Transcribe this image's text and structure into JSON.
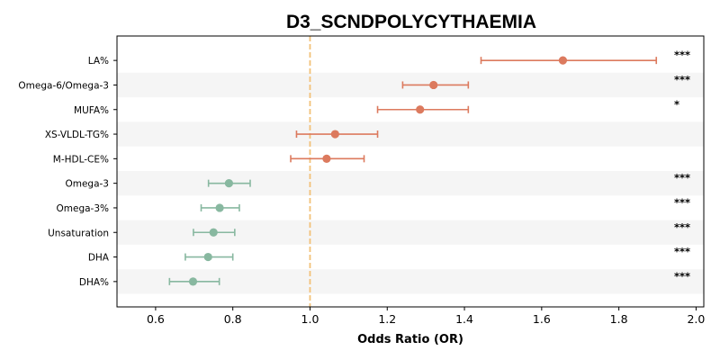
{
  "chart_data": {
    "type": "forest",
    "title": "D3_SCNDPOLYCYTHAEMIA",
    "xlabel": "Odds Ratio (OR)",
    "xlim": [
      0.5,
      2.02
    ],
    "xticks": [
      "0.6",
      "0.8",
      "1.0",
      "1.2",
      "1.4",
      "1.6",
      "1.8",
      "2.0"
    ],
    "xtick_values": [
      0.6,
      0.8,
      1.0,
      1.2,
      1.4,
      1.6,
      1.8,
      2.0
    ],
    "reference_line": 1.0,
    "colors": {
      "risk": "#dc7a5e",
      "protective": "#88b8a0",
      "reference": "#f2c178",
      "band": "#f5f5f5"
    },
    "rows": [
      {
        "label": "LA%",
        "or": 1.655,
        "ci_low": 1.443,
        "ci_high": 1.897,
        "sig": "***",
        "direction": "risk"
      },
      {
        "label": "Omega-6/Omega-3",
        "or": 1.32,
        "ci_low": 1.24,
        "ci_high": 1.41,
        "sig": "***",
        "direction": "risk"
      },
      {
        "label": "MUFA%",
        "or": 1.285,
        "ci_low": 1.175,
        "ci_high": 1.41,
        "sig": "*",
        "direction": "risk"
      },
      {
        "label": "XS-VLDL-TG%",
        "or": 1.065,
        "ci_low": 0.965,
        "ci_high": 1.175,
        "sig": "",
        "direction": "risk"
      },
      {
        "label": "M-HDL-CE%",
        "or": 1.043,
        "ci_low": 0.95,
        "ci_high": 1.14,
        "sig": "",
        "direction": "risk"
      },
      {
        "label": "Omega-3",
        "or": 0.79,
        "ci_low": 0.737,
        "ci_high": 0.845,
        "sig": "***",
        "direction": "protective"
      },
      {
        "label": "Omega-3%",
        "or": 0.766,
        "ci_low": 0.718,
        "ci_high": 0.817,
        "sig": "***",
        "direction": "protective"
      },
      {
        "label": "Unsaturation",
        "or": 0.75,
        "ci_low": 0.698,
        "ci_high": 0.805,
        "sig": "***",
        "direction": "protective"
      },
      {
        "label": "DHA",
        "or": 0.736,
        "ci_low": 0.677,
        "ci_high": 0.8,
        "sig": "***",
        "direction": "protective"
      },
      {
        "label": "DHA%",
        "or": 0.697,
        "ci_low": 0.636,
        "ci_high": 0.765,
        "sig": "***",
        "direction": "protective"
      }
    ]
  }
}
